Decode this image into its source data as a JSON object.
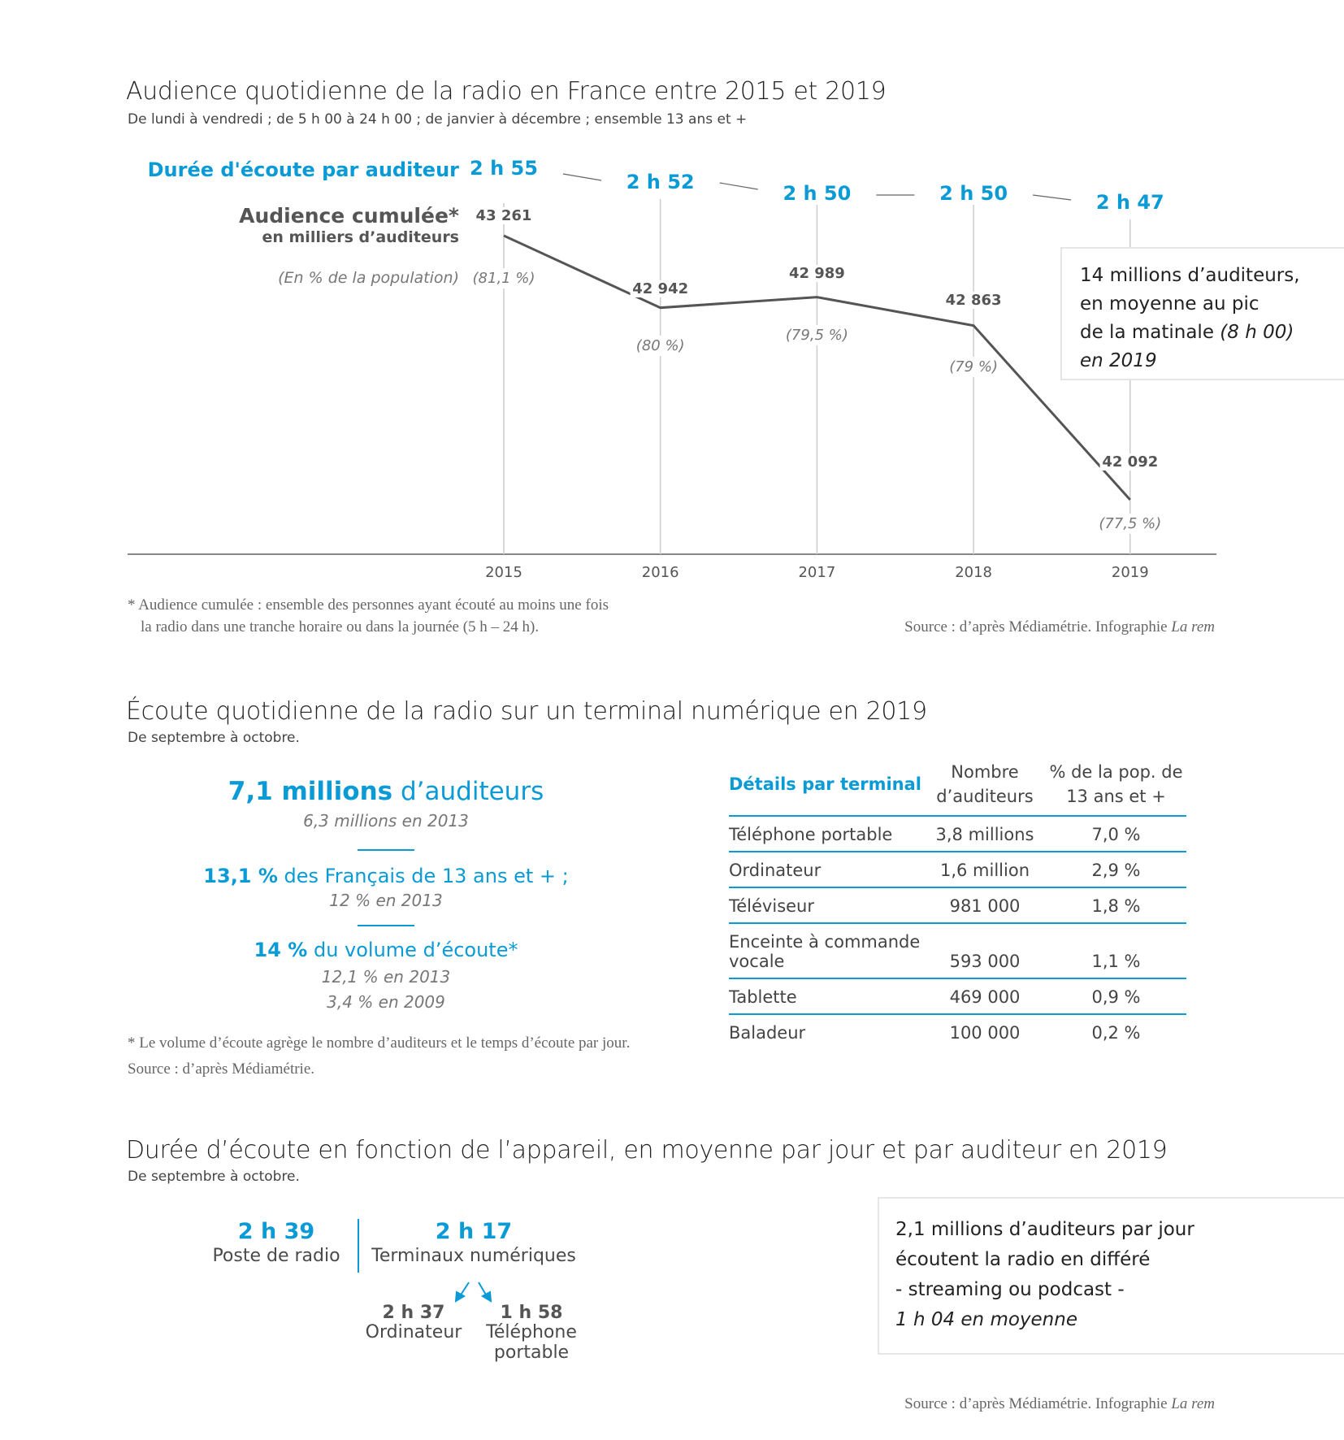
{
  "section1": {
    "title": "Audience quotidienne de la radio en France entre 2015 et 2019",
    "subtitle": "De lundi à vendredi ; de 5 h 00 à 24 h 00 ; de janvier à décembre ; ensemble 13 ans et +",
    "duration_label": "Durée d'écoute par auditeur",
    "audience_label": "Audience cumulée*",
    "audience_unit": "en milliers d’auditeurs",
    "pct_label": "(En % de la population)",
    "callout": [
      "14 millions d’auditeurs,",
      "en moyenne au pic",
      "de la matinale",
      "(8 h 00)",
      "en 2019"
    ],
    "footnote": [
      "* Audience cumulée : ensemble des personnes ayant écouté au moins une fois",
      "la radio dans une tranche horaire ou dans la journée (5 h – 24 h)."
    ],
    "source": "Source : d’après Médiamétrie.  Infographie",
    "source_brand": "La rem"
  },
  "chart_data": {
    "type": "line",
    "title": "Audience quotidienne de la radio en France entre 2015 et 2019",
    "x": [
      "2015",
      "2016",
      "2017",
      "2018",
      "2019"
    ],
    "series": [
      {
        "name": "Audience cumulée (milliers d’auditeurs)",
        "values": [
          43261,
          42942,
          42989,
          42863,
          42092
        ],
        "labels": [
          "43 261",
          "42 942",
          "42 989",
          "42 863",
          "42 092"
        ]
      },
      {
        "name": "En % de la population",
        "values": [
          81.1,
          80,
          79.5,
          79,
          77.5
        ],
        "labels": [
          "(81,1 %)",
          "(80 %)",
          "(79,5 %)",
          "(79 %)",
          "(77,5 %)"
        ]
      },
      {
        "name": "Durée d'écoute par auditeur",
        "values": [
          "2 h 55",
          "2 h 52",
          "2 h 50",
          "2 h 50",
          "2 h 47"
        ]
      }
    ],
    "grid": false
  },
  "section2": {
    "title": "Écoute quotidienne de la radio sur un terminal numérique en 2019",
    "subtitle": "De septembre à octobre.",
    "stat1_bold": "7,1 millions",
    "stat1_rest": " d’auditeurs",
    "stat1_sub": "6,3 millions en 2013",
    "stat2_bold": "13,1 %",
    "stat2_rest": " des Français de 13 ans et + ;",
    "stat2_sub": "12 % en 2013",
    "stat3_bold": "14 %",
    "stat3_rest": " du volume d’écoute*",
    "stat3_sub1": "12,1 % en 2013",
    "stat3_sub2": "3,4 % en 2009",
    "footnote": "* Le volume d’écoute agrège le nombre d’auditeurs et le temps d’écoute par jour.",
    "source": "Source : d’après Médiamétrie.",
    "table": {
      "headers": [
        "Détails par terminal",
        "Nombre d’auditeurs",
        "% de la pop. de 13 ans et +"
      ],
      "rows": [
        [
          "Téléphone portable",
          "3,8 millions",
          "7,0 %"
        ],
        [
          "Ordinateur",
          "1,6 million",
          "2,9 %"
        ],
        [
          "Téléviseur",
          "981 000",
          "1,8 %"
        ],
        [
          "Enceinte à commande vocale",
          "593 000",
          "1,1 %"
        ],
        [
          "Tablette",
          "469 000",
          "0,9 %"
        ],
        [
          "Baladeur",
          "100 000",
          "0,2 %"
        ]
      ]
    }
  },
  "section3": {
    "title": "Durée d’écoute en fonction de l’appareil, en moyenne par jour et par auditeur en 2019",
    "subtitle": "De septembre à octobre.",
    "radio_value": "2 h 39",
    "radio_label": "Poste de radio",
    "digital_value": "2 h 17",
    "digital_label": "Terminaux numériques",
    "computer_value": "2 h 37",
    "computer_label": "Ordinateur",
    "phone_value": "1 h 58",
    "phone_label1": "Téléphone",
    "phone_label2": "portable",
    "callout": [
      "2,1 millions d’auditeurs par jour",
      "écoutent la radio en différé",
      "- streaming ou podcast -",
      "1 h 04 en moyenne"
    ],
    "source": "Source : d’après Médiamétrie.   Infographie",
    "source_brand": "La rem"
  }
}
